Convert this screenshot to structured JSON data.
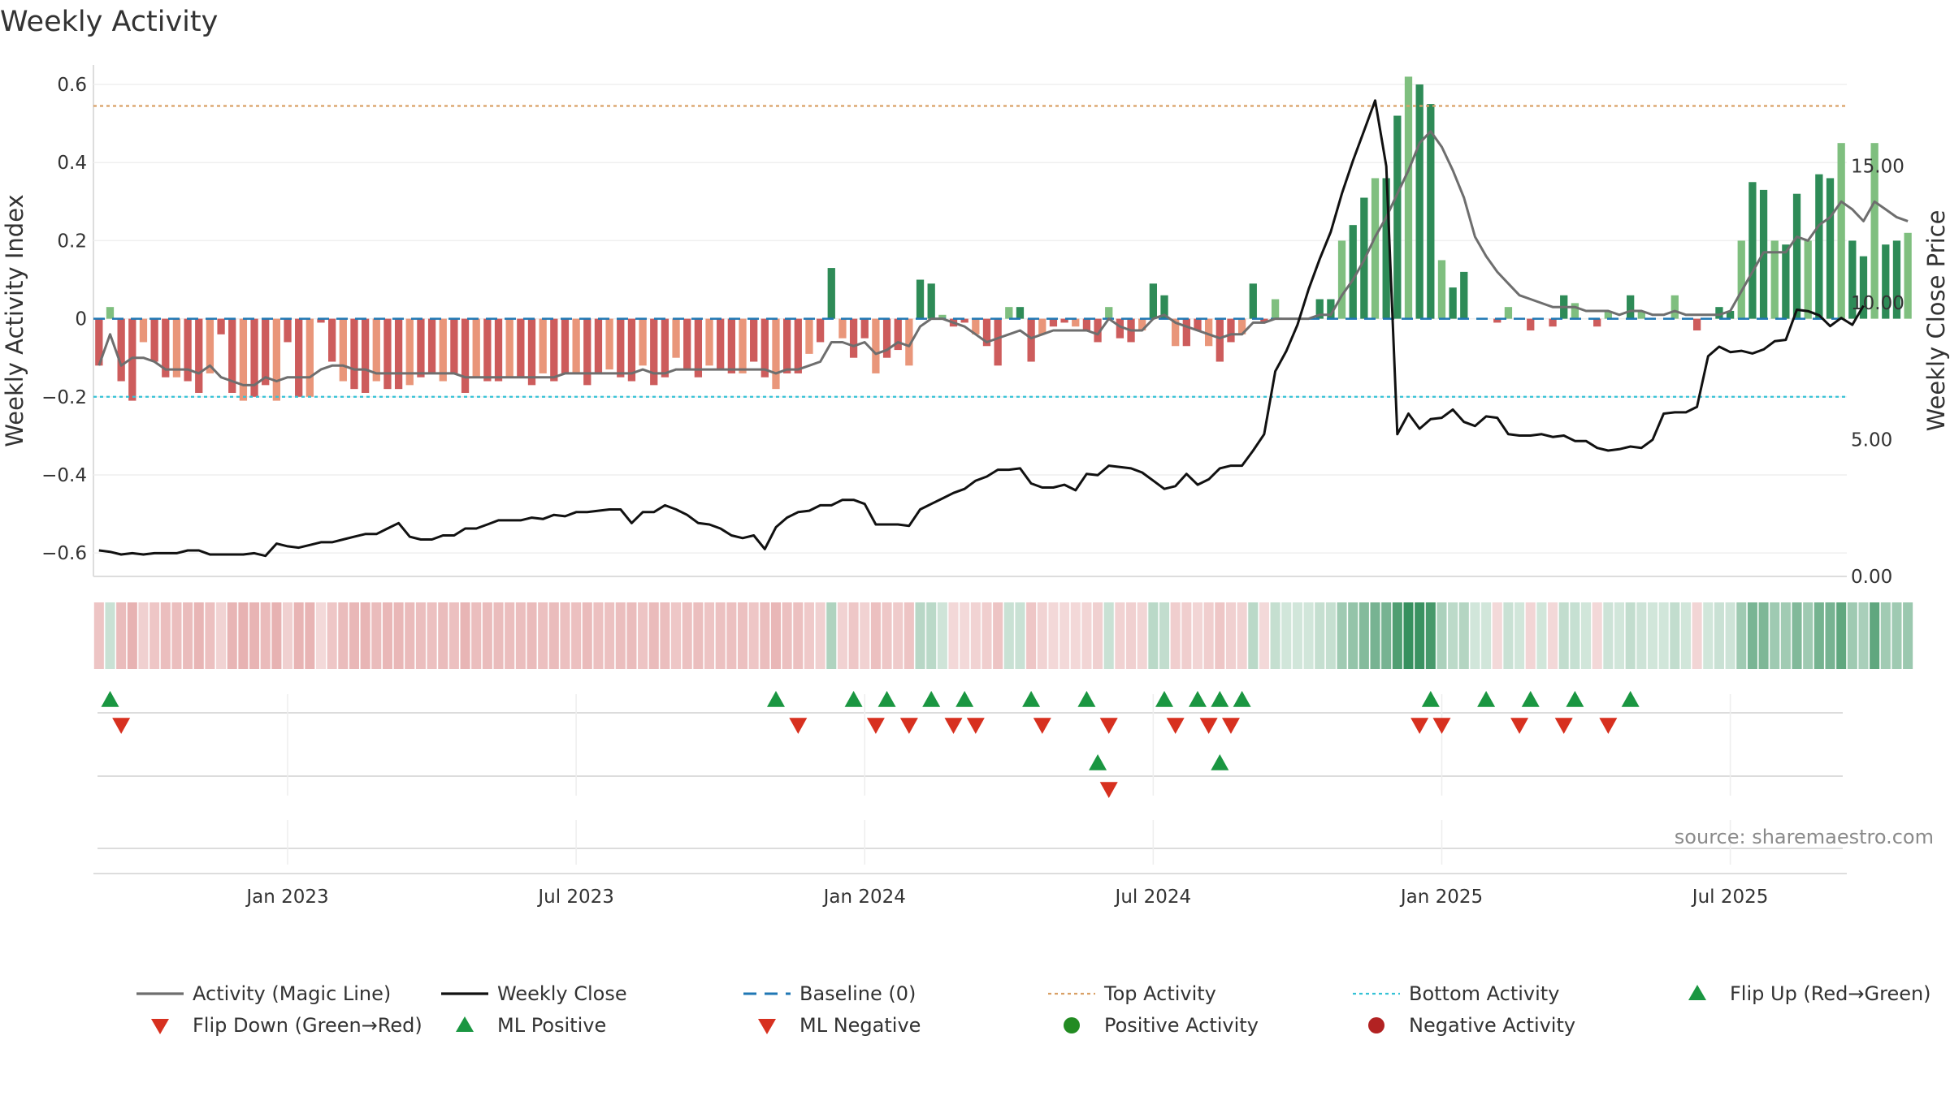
{
  "chart_data": {
    "type": "bar",
    "title": "Weekly Activity",
    "ylabel": "Weekly Activity Index",
    "y2label": "Weekly Close Price",
    "ylim": [
      -0.66,
      0.65
    ],
    "y2lim": [
      0,
      18.7
    ],
    "yticks": [
      {
        "value": 0.6,
        "label": "0.6"
      },
      {
        "value": 0.4,
        "label": "0.4"
      },
      {
        "value": 0.2,
        "label": "0.2"
      },
      {
        "value": 0,
        "label": "0"
      },
      {
        "value": -0.2,
        "label": "−0.2"
      },
      {
        "value": -0.4,
        "label": "−0.4"
      },
      {
        "value": -0.6,
        "label": "−0.6"
      }
    ],
    "y2ticks": [
      {
        "value": 15,
        "label": "15.00"
      },
      {
        "value": 10,
        "label": "10.00"
      },
      {
        "value": 5,
        "label": "5.00"
      },
      {
        "value": 0,
        "label": "0.00"
      }
    ],
    "xticks": [
      {
        "value": 17,
        "label": "Jan 2023"
      },
      {
        "value": 43,
        "label": "Jul 2023"
      },
      {
        "value": 69,
        "label": "Jan 2024"
      },
      {
        "value": 95,
        "label": "Jul 2024"
      },
      {
        "value": 121,
        "label": "Jan 2025"
      },
      {
        "value": 147,
        "label": "Jul 2025"
      }
    ],
    "top_activity": 0.545,
    "bottom_activity": -0.2,
    "baseline": 0,
    "weeks": 158,
    "activity": [
      -0.12,
      0.03,
      -0.16,
      -0.21,
      -0.06,
      -0.11,
      -0.15,
      -0.15,
      -0.16,
      -0.19,
      -0.14,
      -0.04,
      -0.19,
      -0.21,
      -0.2,
      -0.17,
      -0.21,
      -0.06,
      -0.2,
      -0.2,
      -0.01,
      -0.11,
      -0.16,
      -0.18,
      -0.19,
      -0.16,
      -0.18,
      -0.18,
      -0.17,
      -0.15,
      -0.14,
      -0.16,
      -0.14,
      -0.19,
      -0.15,
      -0.16,
      -0.16,
      -0.15,
      -0.15,
      -0.17,
      -0.14,
      -0.16,
      -0.14,
      -0.14,
      -0.17,
      -0.14,
      -0.13,
      -0.15,
      -0.16,
      -0.12,
      -0.17,
      -0.15,
      -0.1,
      -0.13,
      -0.15,
      -0.12,
      -0.13,
      -0.14,
      -0.14,
      -0.11,
      -0.15,
      -0.18,
      -0.14,
      -0.14,
      -0.09,
      -0.06,
      0.13,
      -0.05,
      -0.1,
      -0.05,
      -0.14,
      -0.1,
      -0.08,
      -0.12,
      0.1,
      0.09,
      0.01,
      -0.02,
      -0.01,
      -0.04,
      -0.07,
      -0.12,
      0.03,
      0.03,
      -0.11,
      -0.04,
      -0.02,
      -0.01,
      -0.02,
      -0.03,
      -0.06,
      0.03,
      -0.05,
      -0.06,
      -0.03,
      0.09,
      0.06,
      -0.07,
      -0.07,
      -0.03,
      -0.07,
      -0.11,
      -0.06,
      -0.04,
      0.09,
      -0.01,
      0.05,
      0.0,
      0.0,
      0.0,
      0.05,
      0.05,
      0.2,
      0.24,
      0.31,
      0.36,
      0.36,
      0.52,
      0.62,
      0.6,
      0.55,
      0.15,
      0.08,
      0.12,
      0.0,
      0.0,
      -0.01,
      0.03,
      0.0,
      -0.03,
      0.0,
      -0.02,
      0.06,
      0.04,
      0.0,
      -0.02,
      0.02,
      0.0,
      0.06,
      0.02,
      0.0,
      0.0,
      0.06,
      0.0,
      -0.03,
      0.0,
      0.03,
      0.02,
      0.2,
      0.35,
      0.33,
      0.2,
      0.19,
      0.32,
      0.2,
      0.37,
      0.36,
      0.45,
      0.2,
      0.16,
      0.45,
      0.19,
      0.2,
      0.22
    ],
    "magic_line": [
      -0.12,
      -0.04,
      -0.12,
      -0.1,
      -0.1,
      -0.11,
      -0.13,
      -0.13,
      -0.13,
      -0.14,
      -0.12,
      -0.15,
      -0.16,
      -0.17,
      -0.17,
      -0.15,
      -0.16,
      -0.15,
      -0.15,
      -0.15,
      -0.13,
      -0.12,
      -0.12,
      -0.13,
      -0.13,
      -0.14,
      -0.14,
      -0.14,
      -0.14,
      -0.14,
      -0.14,
      -0.14,
      -0.14,
      -0.15,
      -0.15,
      -0.15,
      -0.15,
      -0.15,
      -0.15,
      -0.15,
      -0.15,
      -0.15,
      -0.14,
      -0.14,
      -0.14,
      -0.14,
      -0.14,
      -0.14,
      -0.14,
      -0.13,
      -0.14,
      -0.14,
      -0.13,
      -0.13,
      -0.13,
      -0.13,
      -0.13,
      -0.13,
      -0.13,
      -0.13,
      -0.13,
      -0.14,
      -0.13,
      -0.13,
      -0.12,
      -0.11,
      -0.06,
      -0.06,
      -0.07,
      -0.06,
      -0.09,
      -0.08,
      -0.06,
      -0.07,
      -0.02,
      0.0,
      0.0,
      -0.01,
      -0.02,
      -0.04,
      -0.06,
      -0.05,
      -0.04,
      -0.03,
      -0.05,
      -0.04,
      -0.03,
      -0.03,
      -0.03,
      -0.03,
      -0.04,
      0.0,
      -0.02,
      -0.03,
      -0.03,
      0.0,
      0.01,
      -0.01,
      -0.02,
      -0.03,
      -0.04,
      -0.05,
      -0.04,
      -0.04,
      -0.01,
      -0.01,
      0.0,
      0.0,
      0.0,
      0.0,
      0.01,
      0.01,
      0.06,
      0.1,
      0.15,
      0.21,
      0.26,
      0.32,
      0.38,
      0.45,
      0.48,
      0.44,
      0.38,
      0.31,
      0.21,
      0.16,
      0.12,
      0.09,
      0.06,
      0.05,
      0.04,
      0.03,
      0.03,
      0.03,
      0.02,
      0.02,
      0.02,
      0.01,
      0.02,
      0.02,
      0.01,
      0.01,
      0.02,
      0.01,
      0.01,
      0.01,
      0.01,
      0.02,
      0.07,
      0.12,
      0.17,
      0.17,
      0.17,
      0.21,
      0.2,
      0.24,
      0.26,
      0.3,
      0.28,
      0.25,
      0.3,
      0.28,
      0.26,
      0.25
    ],
    "weekly_close": [
      0.95,
      0.9,
      0.8,
      0.85,
      0.8,
      0.85,
      0.85,
      0.85,
      0.95,
      0.95,
      0.8,
      0.8,
      0.8,
      0.8,
      0.85,
      0.75,
      1.2,
      1.1,
      1.05,
      1.15,
      1.25,
      1.25,
      1.35,
      1.45,
      1.55,
      1.55,
      1.75,
      1.95,
      1.45,
      1.35,
      1.35,
      1.5,
      1.5,
      1.75,
      1.75,
      1.9,
      2.05,
      2.05,
      2.05,
      2.15,
      2.1,
      2.25,
      2.2,
      2.35,
      2.35,
      2.4,
      2.45,
      2.45,
      1.95,
      2.35,
      2.35,
      2.6,
      2.45,
      2.25,
      1.95,
      1.9,
      1.75,
      1.5,
      1.4,
      1.5,
      1.0,
      1.8,
      2.15,
      2.35,
      2.4,
      2.6,
      2.6,
      2.8,
      2.8,
      2.65,
      1.9,
      1.9,
      1.9,
      1.85,
      2.45,
      2.65,
      2.85,
      3.05,
      3.2,
      3.5,
      3.65,
      3.9,
      3.9,
      3.95,
      3.4,
      3.25,
      3.25,
      3.35,
      3.15,
      3.75,
      3.7,
      4.05,
      4.0,
      3.95,
      3.8,
      3.5,
      3.2,
      3.3,
      3.75,
      3.35,
      3.55,
      3.95,
      4.05,
      4.05,
      4.6,
      5.2,
      7.5,
      8.25,
      9.2,
      10.5,
      11.6,
      12.6,
      14.0,
      15.2,
      16.3,
      17.4,
      15.0,
      5.2,
      5.95,
      5.4,
      5.75,
      5.8,
      6.1,
      5.65,
      5.5,
      5.85,
      5.8,
      5.2,
      5.15,
      5.15,
      5.2,
      5.1,
      5.15,
      4.95,
      4.95,
      4.7,
      4.6,
      4.65,
      4.75,
      4.7,
      5.0,
      5.95,
      6.0,
      6.0,
      6.2,
      8.05,
      8.4,
      8.2,
      8.25,
      8.15,
      8.3,
      8.6,
      8.65,
      9.75,
      9.7,
      9.55,
      9.15,
      9.45,
      9.2,
      9.9
    ],
    "flip_up": [
      1,
      61,
      68,
      71,
      75,
      78,
      84,
      89,
      96,
      99,
      101,
      103,
      120,
      125,
      129,
      133,
      138
    ],
    "flip_down": [
      2,
      63,
      70,
      73,
      77,
      79,
      85,
      91,
      97,
      100,
      102,
      119,
      121,
      128,
      132,
      136
    ],
    "ml_positive": [
      90,
      101
    ],
    "ml_negative": [
      91
    ],
    "colors": {
      "pos_strong": "#2e8b57",
      "pos_light": "#7fbf7f",
      "neg_strong": "#cd5c5c",
      "neg_light": "#e9967a",
      "magic_line": "#6e6e6e",
      "weekly_close": "#111111",
      "baseline": "#1f77b4",
      "top_activity": "#d9a066",
      "bottom_activity": "#35c2d6",
      "marker_up": "#1a9641",
      "marker_down": "#d7301f",
      "dot_positive": "#228b22",
      "dot_negative": "#b22222"
    },
    "legend": [
      {
        "label": "Activity (Magic Line)",
        "kind": "line",
        "color": "#6e6e6e"
      },
      {
        "label": "Weekly Close",
        "kind": "line",
        "color": "#111111"
      },
      {
        "label": "Baseline (0)",
        "kind": "dash",
        "color": "#1f77b4"
      },
      {
        "label": "Top Activity",
        "kind": "dot-line",
        "color": "#d9a066"
      },
      {
        "label": "Bottom Activity",
        "kind": "dot-line",
        "color": "#35c2d6"
      },
      {
        "label": "Flip Up (Red→Green)",
        "kind": "tri-up",
        "color": "#1a9641"
      },
      {
        "label": "Flip Down (Green→Red)",
        "kind": "tri-down",
        "color": "#d7301f"
      },
      {
        "label": "ML Positive",
        "kind": "tri-up",
        "color": "#1a9641"
      },
      {
        "label": "ML Negative",
        "kind": "tri-down",
        "color": "#d7301f"
      },
      {
        "label": "Positive Activity",
        "kind": "circle",
        "color": "#228b22"
      },
      {
        "label": "Negative Activity",
        "kind": "circle",
        "color": "#b22222"
      }
    ],
    "source": "source: sharemaestro.com"
  }
}
